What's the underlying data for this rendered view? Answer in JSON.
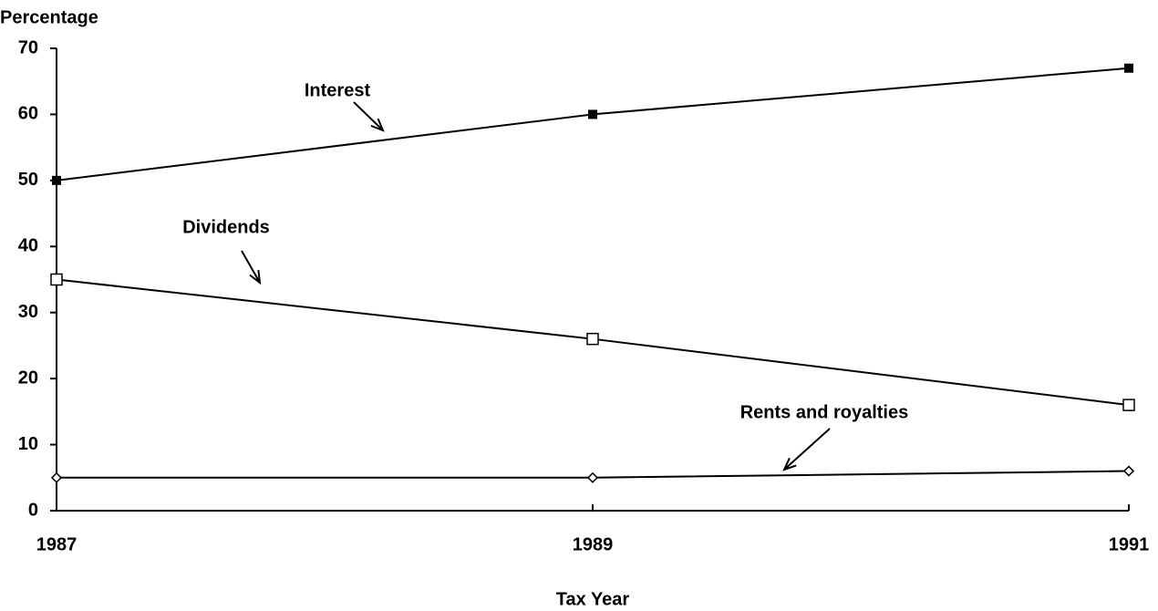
{
  "chart_data": {
    "type": "line",
    "y_label": "Percentage",
    "x_label": "Tax Year",
    "x": [
      1987,
      1989,
      1991
    ],
    "xlim": [
      1987,
      1991
    ],
    "xticks": [
      1987,
      1989,
      1991
    ],
    "ylim": [
      0,
      70
    ],
    "yticks": [
      0,
      10,
      20,
      30,
      40,
      50,
      60,
      70
    ],
    "grid": false,
    "series": [
      {
        "name": "Interest",
        "color": "#000000",
        "marker": "filled-square",
        "values": [
          50,
          60,
          67
        ]
      },
      {
        "name": "Dividends",
        "color": "#000000",
        "marker": "open-square",
        "values": [
          35,
          26,
          16
        ]
      },
      {
        "name": "Rents and royalties",
        "color": "#000000",
        "marker": "open-diamond",
        "values": [
          5,
          5,
          6
        ]
      }
    ]
  }
}
